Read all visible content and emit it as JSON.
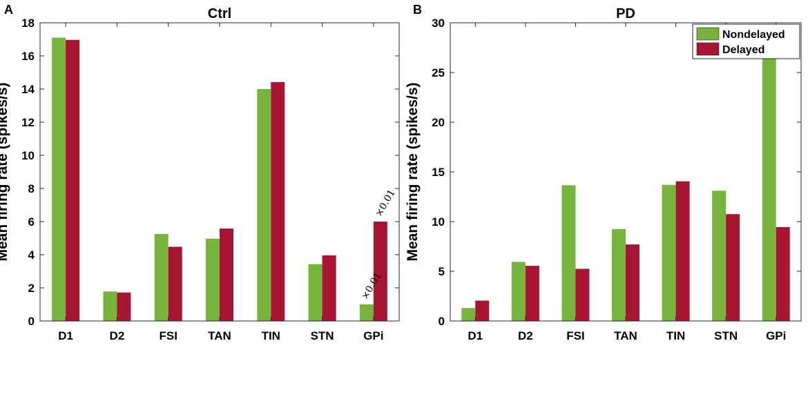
{
  "colors": {
    "nondelayed": "#77b43d",
    "delayed": "#a81533",
    "frame": "#262626"
  },
  "chart_data": [
    {
      "panel": "A",
      "type": "bar",
      "title": "Ctrl",
      "xlabel": "",
      "ylabel": "Mean firing rate (spikes/s)",
      "ylim": [
        0,
        18
      ],
      "yticks": [
        0,
        2,
        4,
        6,
        8,
        10,
        12,
        14,
        16,
        18
      ],
      "categories": [
        "D1",
        "D2",
        "FSI",
        "TAN",
        "TIN",
        "STN",
        "GPi"
      ],
      "series": [
        {
          "name": "Nondelayed",
          "values": [
            17.1,
            1.78,
            5.25,
            4.97,
            14.0,
            3.43,
            1.0
          ]
        },
        {
          "name": "Delayed",
          "values": [
            16.97,
            1.72,
            4.48,
            5.58,
            14.42,
            3.96,
            6.0
          ]
        }
      ],
      "annotations": [
        {
          "category": "GPi",
          "series": "Nondelayed",
          "text": "×0.01"
        },
        {
          "category": "GPi",
          "series": "Delayed",
          "text": "×0.01"
        }
      ],
      "legend": null
    },
    {
      "panel": "B",
      "type": "bar",
      "title": "PD",
      "xlabel": "",
      "ylabel": "Mean firing rate (spikes/s)",
      "ylim": [
        0,
        30
      ],
      "yticks": [
        0,
        5,
        10,
        15,
        20,
        25,
        30
      ],
      "categories": [
        "D1",
        "D2",
        "FSI",
        "TAN",
        "TIN",
        "STN",
        "GPi"
      ],
      "series": [
        {
          "name": "Nondelayed",
          "values": [
            1.3,
            5.95,
            13.65,
            9.25,
            13.7,
            13.1,
            26.4
          ]
        },
        {
          "name": "Delayed",
          "values": [
            2.05,
            5.55,
            5.25,
            7.7,
            14.05,
            10.75,
            9.45
          ]
        }
      ],
      "annotations": [],
      "legend": {
        "position": "top-right",
        "entries": [
          "Nondelayed",
          "Delayed"
        ]
      }
    }
  ]
}
